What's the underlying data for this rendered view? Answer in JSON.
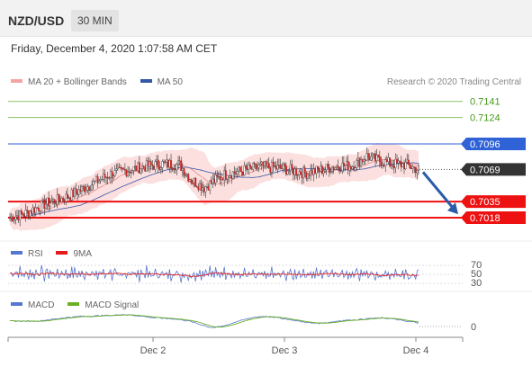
{
  "header": {
    "pair": "NZD/USD",
    "timeframe": "30 MIN"
  },
  "datetime": "Friday, December 4, 2020 1:07:58 AM CET",
  "credit": "Research © 2020 Trading Central",
  "legends": {
    "ma": "MA 20 + Bollinger Bands",
    "ma50": "MA 50",
    "rsi": "RSI",
    "ma9": "9MA",
    "macd": "MACD",
    "macd_signal": "MACD Signal"
  },
  "colors": {
    "bollinger": "#f5a3a3",
    "ma50": "#3557a8",
    "resistance_green": "#8cc06a",
    "pivot_blue": "#2f62d6",
    "support_red": "#ee1111",
    "last_price": "#333333",
    "candle_up": "#ffffff",
    "candle_down": "#c62828",
    "rsi": "#5677cf",
    "rsi_ma": "#e31b1b",
    "macd": "#5677cf",
    "macd_signal": "#6ab023"
  },
  "chart_data": [
    {
      "type": "candlestick",
      "title": "NZD/USD",
      "timeframe": "30 MIN",
      "x_ticks": [
        "Dec 2",
        "Dec 3",
        "Dec 4"
      ],
      "levels": [
        {
          "value": "0.7141",
          "kind": "resistance"
        },
        {
          "value": "0.7124",
          "kind": "resistance"
        },
        {
          "value": "0.7096",
          "kind": "pivot"
        },
        {
          "value": "0.7069",
          "kind": "last_price"
        },
        {
          "value": "0.7035",
          "kind": "support"
        },
        {
          "value": "0.7018",
          "kind": "support"
        }
      ],
      "forecast_arrow": {
        "from": 0.7069,
        "to": 0.7035
      },
      "ylim": [
        0.7008,
        0.715
      ]
    },
    {
      "type": "line",
      "name": "RSI",
      "series": [
        {
          "name": "RSI"
        },
        {
          "name": "9MA"
        }
      ],
      "y_ticks": [
        "70",
        "50",
        "30"
      ]
    },
    {
      "type": "line",
      "name": "MACD",
      "series": [
        {
          "name": "MACD"
        },
        {
          "name": "MACD Signal"
        }
      ],
      "y_ticks": [
        "0"
      ]
    }
  ]
}
